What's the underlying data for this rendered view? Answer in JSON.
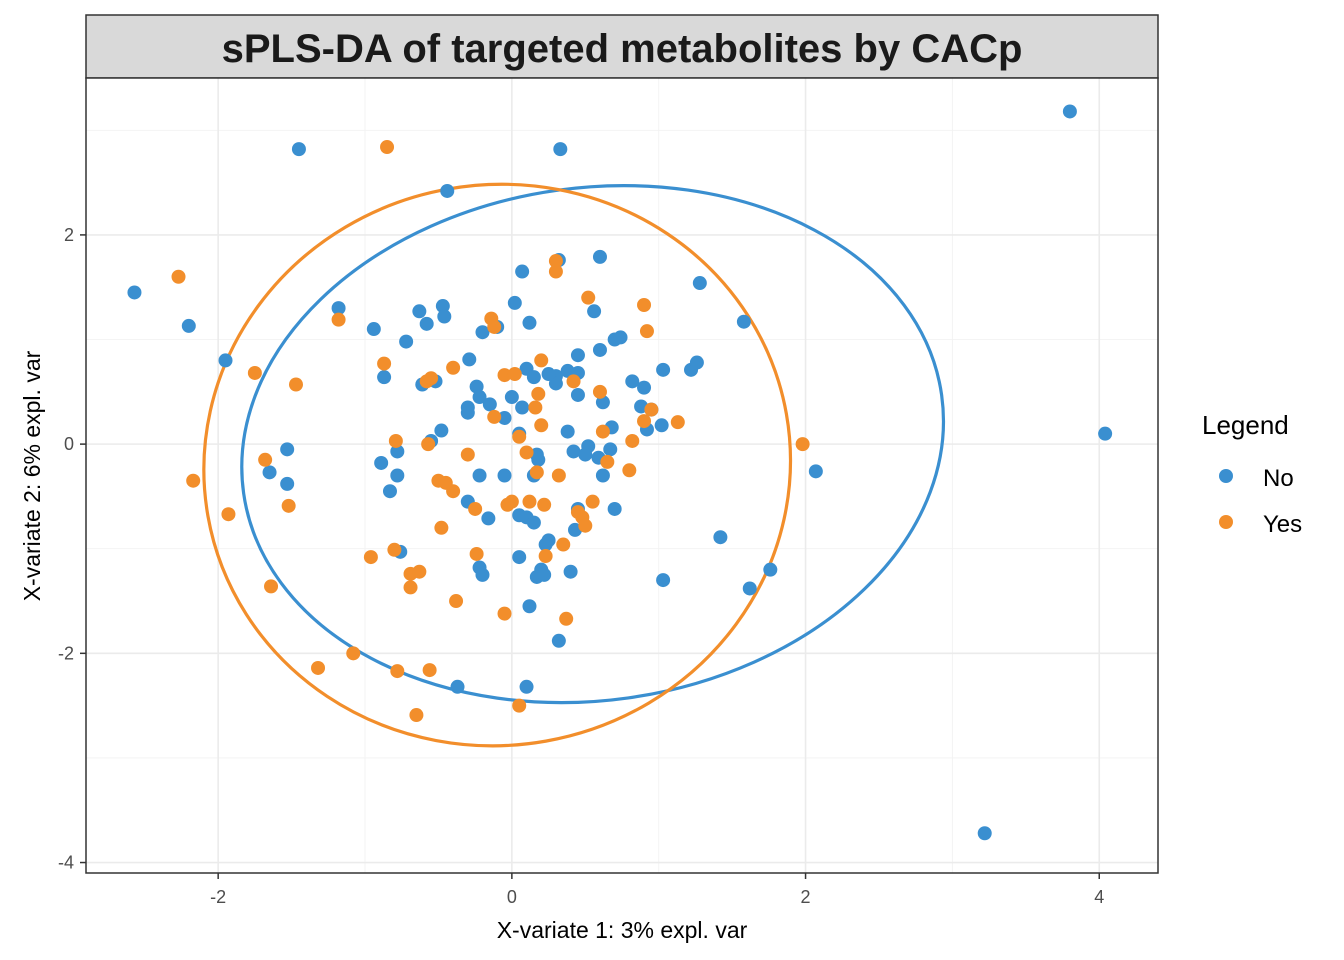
{
  "chart_data": {
    "type": "scatter",
    "title": "sPLS-DA of targeted metabolites by CACp",
    "xlabel": "X-variate 1: 3% expl. var",
    "ylabel": "X-variate 2: 6% expl. var",
    "xlim": [
      -2.9,
      4.4
    ],
    "ylim": [
      -4.1,
      3.5
    ],
    "x_ticks": [
      -2,
      0,
      2,
      4
    ],
    "y_ticks": [
      -4,
      -2,
      0,
      2
    ],
    "x_tick_labels": [
      "-2",
      "0",
      "2",
      "4"
    ],
    "y_tick_labels": [
      "-4",
      "-2",
      "0",
      "2"
    ],
    "grid": true,
    "legend": {
      "title": "Legend",
      "position": "right",
      "entries": [
        "No",
        "Yes"
      ]
    },
    "series": [
      {
        "name": "No",
        "color": "#3a8fd0",
        "points": [
          [
            -2.57,
            1.45
          ],
          [
            -2.2,
            1.13
          ],
          [
            -1.95,
            0.8
          ],
          [
            -1.45,
            2.82
          ],
          [
            -1.53,
            -0.05
          ],
          [
            -1.65,
            -0.27
          ],
          [
            -1.53,
            -0.38
          ],
          [
            -1.18,
            1.3
          ],
          [
            -0.94,
            1.1
          ],
          [
            -0.72,
            0.98
          ],
          [
            -0.87,
            0.64
          ],
          [
            -0.89,
            -0.18
          ],
          [
            -0.78,
            -0.07
          ],
          [
            -0.78,
            -0.3
          ],
          [
            -0.83,
            -0.45
          ],
          [
            -0.76,
            -1.03
          ],
          [
            -0.63,
            1.27
          ],
          [
            -0.58,
            1.15
          ],
          [
            -0.47,
            1.32
          ],
          [
            -0.46,
            1.22
          ],
          [
            -0.61,
            0.57
          ],
          [
            -0.52,
            0.6
          ],
          [
            -0.55,
            0.03
          ],
          [
            -0.48,
            0.13
          ],
          [
            -0.44,
            2.42
          ],
          [
            -0.29,
            0.81
          ],
          [
            -0.2,
            1.07
          ],
          [
            -0.24,
            0.55
          ],
          [
            -0.22,
            0.45
          ],
          [
            -0.3,
            0.35
          ],
          [
            -0.3,
            0.3
          ],
          [
            -0.15,
            0.38
          ],
          [
            -0.1,
            1.12
          ],
          [
            -0.05,
            0.25
          ],
          [
            0.0,
            0.45
          ],
          [
            -0.05,
            -0.3
          ],
          [
            -0.22,
            -0.3
          ],
          [
            -0.3,
            -0.55
          ],
          [
            -0.16,
            -0.71
          ],
          [
            -0.22,
            -1.18
          ],
          [
            -0.2,
            -1.25
          ],
          [
            -0.37,
            -2.32
          ],
          [
            0.02,
            1.35
          ],
          [
            0.07,
            1.65
          ],
          [
            0.12,
            1.16
          ],
          [
            0.1,
            0.72
          ],
          [
            0.15,
            0.64
          ],
          [
            0.07,
            0.35
          ],
          [
            0.05,
            0.1
          ],
          [
            0.17,
            -0.1
          ],
          [
            0.15,
            -0.3
          ],
          [
            0.18,
            -0.15
          ],
          [
            0.05,
            -0.68
          ],
          [
            0.1,
            -0.7
          ],
          [
            0.15,
            -0.75
          ],
          [
            0.25,
            -0.92
          ],
          [
            0.23,
            -0.96
          ],
          [
            0.05,
            -1.08
          ],
          [
            0.2,
            -1.2
          ],
          [
            0.17,
            -1.27
          ],
          [
            0.22,
            -1.25
          ],
          [
            0.12,
            -1.55
          ],
          [
            0.32,
            -1.88
          ],
          [
            0.1,
            -2.32
          ],
          [
            0.32,
            1.76
          ],
          [
            0.33,
            2.82
          ],
          [
            0.3,
            0.65
          ],
          [
            0.3,
            0.58
          ],
          [
            0.38,
            0.7
          ],
          [
            0.45,
            0.85
          ],
          [
            0.45,
            0.68
          ],
          [
            0.45,
            0.47
          ],
          [
            0.38,
            0.12
          ],
          [
            0.42,
            -0.07
          ],
          [
            0.52,
            -0.02
          ],
          [
            0.5,
            -0.1
          ],
          [
            0.45,
            -0.62
          ],
          [
            0.43,
            -0.82
          ],
          [
            0.4,
            -1.22
          ],
          [
            0.56,
            1.27
          ],
          [
            0.6,
            1.79
          ],
          [
            0.6,
            0.9
          ],
          [
            0.62,
            0.4
          ],
          [
            0.59,
            -0.13
          ],
          [
            0.62,
            -0.3
          ],
          [
            0.68,
            0.16
          ],
          [
            0.7,
            1.0
          ],
          [
            0.74,
            1.02
          ],
          [
            0.7,
            -0.62
          ],
          [
            0.82,
            0.6
          ],
          [
            0.88,
            0.36
          ],
          [
            0.95,
            0.33
          ],
          [
            0.9,
            0.54
          ],
          [
            0.92,
            0.14
          ],
          [
            1.02,
            0.18
          ],
          [
            1.03,
            0.71
          ],
          [
            1.22,
            0.71
          ],
          [
            1.26,
            0.78
          ],
          [
            1.28,
            1.54
          ],
          [
            1.03,
            -1.3
          ],
          [
            1.42,
            -0.89
          ],
          [
            1.58,
            1.17
          ],
          [
            1.62,
            -1.38
          ],
          [
            1.76,
            -1.2
          ],
          [
            2.07,
            -0.26
          ],
          [
            3.22,
            -3.72
          ],
          [
            3.8,
            3.18
          ],
          [
            4.04,
            0.1
          ],
          [
            0.67,
            -0.05
          ],
          [
            0.25,
            0.67
          ]
        ]
      },
      {
        "name": "Yes",
        "color": "#f28e2b",
        "points": [
          [
            -2.27,
            1.6
          ],
          [
            -2.17,
            -0.35
          ],
          [
            -1.93,
            -0.67
          ],
          [
            -1.75,
            0.68
          ],
          [
            -1.68,
            -0.15
          ],
          [
            -1.64,
            -1.36
          ],
          [
            -1.47,
            0.57
          ],
          [
            -1.52,
            -0.59
          ],
          [
            -1.32,
            -2.14
          ],
          [
            -1.18,
            1.19
          ],
          [
            -1.08,
            -2.0
          ],
          [
            -0.96,
            -1.08
          ],
          [
            -0.87,
            0.77
          ],
          [
            -0.85,
            2.84
          ],
          [
            -0.79,
            0.03
          ],
          [
            -0.78,
            -2.17
          ],
          [
            -0.8,
            -1.01
          ],
          [
            -0.69,
            -1.24
          ],
          [
            -0.69,
            -1.37
          ],
          [
            -0.63,
            -1.22
          ],
          [
            -0.65,
            -2.59
          ],
          [
            -0.58,
            0.6
          ],
          [
            -0.55,
            0.63
          ],
          [
            -0.57,
            0.0
          ],
          [
            -0.56,
            -2.16
          ],
          [
            -0.5,
            -0.35
          ],
          [
            -0.48,
            -0.8
          ],
          [
            -0.4,
            0.73
          ],
          [
            -0.4,
            -0.45
          ],
          [
            -0.38,
            -1.5
          ],
          [
            -0.3,
            -0.1
          ],
          [
            -0.25,
            -0.62
          ],
          [
            -0.24,
            -1.05
          ],
          [
            -0.14,
            1.2
          ],
          [
            -0.12,
            1.12
          ],
          [
            -0.12,
            0.26
          ],
          [
            -0.03,
            -0.58
          ],
          [
            -0.05,
            -1.62
          ],
          [
            -0.05,
            0.66
          ],
          [
            0.0,
            -0.55
          ],
          [
            0.02,
            0.67
          ],
          [
            0.05,
            0.07
          ],
          [
            0.1,
            -0.08
          ],
          [
            0.05,
            -2.5
          ],
          [
            0.18,
            0.48
          ],
          [
            0.17,
            -0.27
          ],
          [
            0.2,
            0.8
          ],
          [
            0.2,
            0.18
          ],
          [
            0.22,
            -0.58
          ],
          [
            0.23,
            -1.07
          ],
          [
            0.3,
            1.75
          ],
          [
            0.3,
            1.65
          ],
          [
            0.32,
            -0.3
          ],
          [
            0.35,
            -0.96
          ],
          [
            0.37,
            -1.67
          ],
          [
            0.42,
            0.6
          ],
          [
            0.45,
            -0.65
          ],
          [
            0.48,
            -0.7
          ],
          [
            0.5,
            -0.78
          ],
          [
            0.52,
            1.4
          ],
          [
            0.6,
            0.5
          ],
          [
            0.62,
            0.12
          ],
          [
            0.65,
            -0.17
          ],
          [
            0.82,
            0.03
          ],
          [
            0.8,
            -0.25
          ],
          [
            0.9,
            1.33
          ],
          [
            0.9,
            0.22
          ],
          [
            0.92,
            1.08
          ],
          [
            0.95,
            0.33
          ],
          [
            1.13,
            0.21
          ],
          [
            1.98,
            0.0
          ],
          [
            0.12,
            -0.55
          ],
          [
            -0.45,
            -0.37
          ],
          [
            0.16,
            0.35
          ],
          [
            0.55,
            -0.55
          ]
        ]
      }
    ],
    "ellipses": [
      {
        "series": "No",
        "center": [
          0.55,
          0.0
        ],
        "semi_axes": [
          2.4,
          2.45
        ],
        "rotation_deg": -8
      },
      {
        "series": "Yes",
        "center": [
          -0.1,
          -0.2
        ],
        "semi_axes": [
          2.0,
          2.68
        ],
        "rotation_deg": -10
      }
    ]
  }
}
